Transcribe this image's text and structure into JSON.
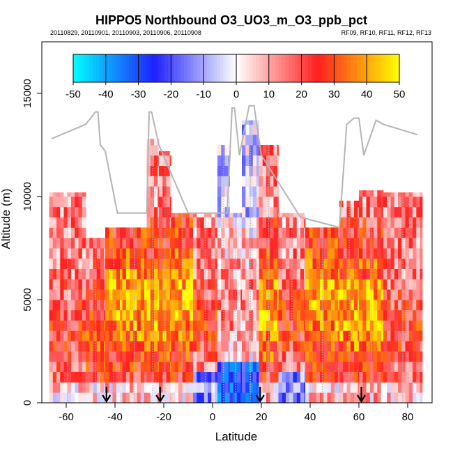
{
  "chart_data": {
    "type": "heatmap",
    "title": "HIPPO5 Northbound O3_UO3_m_O3_ppb_pct",
    "subtitle_left": "20110829, 20110901, 20110903, 20110906, 20110908",
    "subtitle_right": "RF09, RF10, RF11, RF12, RF13",
    "xlabel": "Latitude",
    "ylabel": "Altitude (m)",
    "xlim": [
      -70,
      90
    ],
    "ylim": [
      0,
      17500
    ],
    "x_ticks": [
      -60,
      -40,
      -20,
      0,
      20,
      40,
      60,
      80
    ],
    "x_tick_labels": [
      "-60",
      "-40",
      "-20",
      "0",
      "20",
      "40",
      "60",
      "80"
    ],
    "y_ticks": [
      0,
      5000,
      10000,
      15000
    ],
    "y_tick_labels": [
      "0",
      "5000",
      "10000",
      "15000"
    ],
    "colorbar": {
      "min": -50,
      "max": 50,
      "ticks": [
        -50,
        -40,
        -30,
        -20,
        -10,
        0,
        10,
        20,
        30,
        40,
        50
      ],
      "tick_labels": [
        "-50",
        "-40",
        "-30",
        "-20",
        "-10",
        "0",
        "10",
        "20",
        "30",
        "40",
        "50"
      ],
      "colors": [
        "#00ffff",
        "#2020ff",
        "#ffffff",
        "#ff2020",
        "#ffff00"
      ]
    },
    "arrow_latitudes": [
      -43.5,
      -21.5,
      19.5,
      61
    ],
    "flight_track_color": "#b4b4b4",
    "profiles": [
      {
        "lat": [
          -67,
          -52
        ],
        "top": 10200,
        "pattern": "edge"
      },
      {
        "lat": [
          -52,
          -44
        ],
        "top": 8000,
        "pattern": "lower"
      },
      {
        "lat": [
          -44,
          -37
        ],
        "top": 8500,
        "pattern": "strong"
      },
      {
        "lat": [
          -37,
          -27
        ],
        "top": 8500,
        "pattern": "strong"
      },
      {
        "lat": [
          -27,
          -22
        ],
        "top": 12800,
        "pattern": "column"
      },
      {
        "lat": [
          -22,
          -17
        ],
        "top": 12200,
        "pattern": "column"
      },
      {
        "lat": [
          -17,
          -8
        ],
        "top": 9200,
        "pattern": "strong"
      },
      {
        "lat": [
          -8,
          2
        ],
        "top": 9200,
        "pattern": "mixed"
      },
      {
        "lat": [
          2,
          7
        ],
        "top": 12500,
        "pattern": "tropical"
      },
      {
        "lat": [
          7,
          12
        ],
        "top": 9200,
        "pattern": "tropical"
      },
      {
        "lat": [
          12,
          19
        ],
        "top": 13700,
        "pattern": "tropical"
      },
      {
        "lat": [
          19,
          27
        ],
        "top": 12500,
        "pattern": "column"
      },
      {
        "lat": [
          27,
          38
        ],
        "top": 9200,
        "pattern": "mixed"
      },
      {
        "lat": [
          38,
          52
        ],
        "top": 8500,
        "pattern": "strong"
      },
      {
        "lat": [
          52,
          60
        ],
        "top": 9800,
        "pattern": "column"
      },
      {
        "lat": [
          60,
          70
        ],
        "top": 10300,
        "pattern": "column"
      },
      {
        "lat": [
          70,
          86
        ],
        "top": 10200,
        "pattern": "edge"
      }
    ],
    "flight_track": [
      [
        -66,
        12800
      ],
      [
        -52,
        13500
      ],
      [
        -48,
        14100
      ],
      [
        -47,
        14100
      ],
      [
        -46,
        12500
      ],
      [
        -44,
        12200
      ],
      [
        -39,
        9200
      ],
      [
        -27,
        9200
      ],
      [
        -26,
        14100
      ],
      [
        -25,
        14100
      ],
      [
        -22,
        12500
      ],
      [
        -10,
        9200
      ],
      [
        6,
        9200
      ],
      [
        8,
        14300
      ],
      [
        9,
        14300
      ],
      [
        11,
        12000
      ],
      [
        15,
        14400
      ],
      [
        17,
        14400
      ],
      [
        20,
        12000
      ],
      [
        36,
        9000
      ],
      [
        52,
        8500
      ],
      [
        55,
        13500
      ],
      [
        58,
        13800
      ],
      [
        60,
        13800
      ],
      [
        62,
        12000
      ],
      [
        67,
        13700
      ],
      [
        70,
        13500
      ],
      [
        84,
        13000
      ]
    ],
    "grid": false,
    "legend": "colorbar top"
  }
}
